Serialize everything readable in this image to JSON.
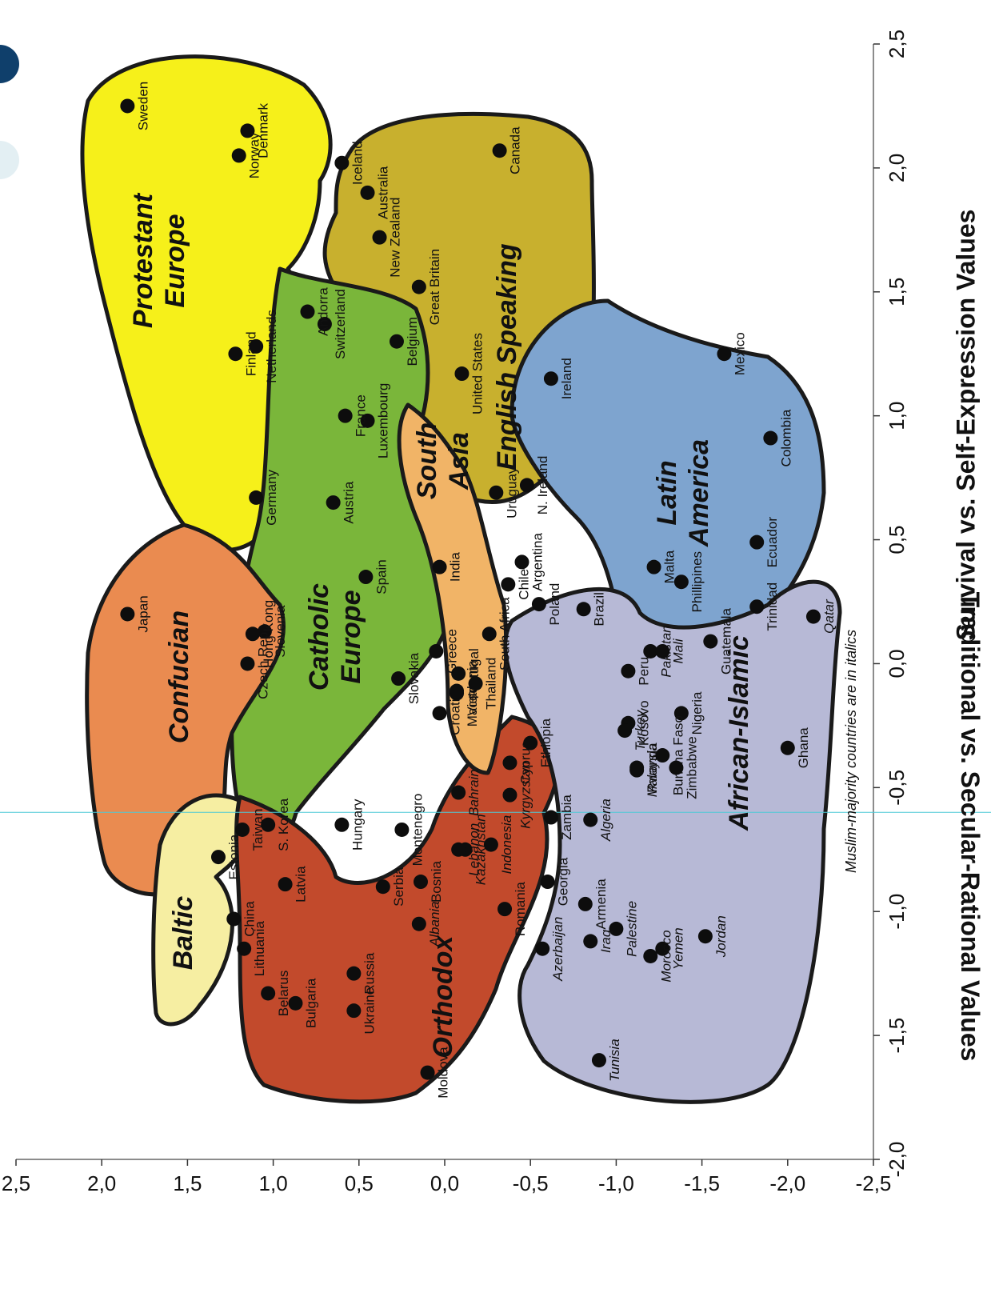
{
  "chart_data": {
    "type": "scatter",
    "xlabel": "Survival vs. Self-Expression Values",
    "ylabel": "Traditional vs. Secular-Rational Values",
    "xlim": [
      -2.0,
      2.5
    ],
    "ylim": [
      -2.5,
      2.5
    ],
    "x_ticks": [
      "-2,0",
      "-1,5",
      "-1,0",
      "-0,5",
      "0,0",
      "0,5",
      "1,0",
      "1,5",
      "2,0",
      "2,5"
    ],
    "y_ticks": [
      "-2,5",
      "-2,0",
      "-1,5",
      "-1,0",
      "-0,5",
      "0,0",
      "0,5",
      "1,0",
      "1,5",
      "2,0",
      "2,5"
    ],
    "note": "Muslim-majority countries are in italics",
    "regions": [
      {
        "name": "Protestant Europe",
        "label_lines": [
          "Protestant",
          "Europe"
        ],
        "color": "#f6f01a"
      },
      {
        "name": "English Speaking",
        "label_lines": [
          "English Speaking"
        ],
        "color": "#c8b02e"
      },
      {
        "name": "Catholic Europe",
        "label_lines": [
          "Catholic",
          "Europe"
        ],
        "color": "#7ab63a"
      },
      {
        "name": "Confucian",
        "label_lines": [
          "Confucian"
        ],
        "color": "#ea8b50"
      },
      {
        "name": "Baltic",
        "label_lines": [
          "Baltic"
        ],
        "color": "#f6eea2"
      },
      {
        "name": "Orthodox",
        "label_lines": [
          "Orthodox"
        ],
        "color": "#c24a2c"
      },
      {
        "name": "South Asia",
        "label_lines": [
          "South",
          "Asia"
        ],
        "color": "#f1b467"
      },
      {
        "name": "Latin America",
        "label_lines": [
          "Latin",
          "America"
        ],
        "color": "#7ea4cf"
      },
      {
        "name": "African-Islamic",
        "label_lines": [
          "African-Islamic"
        ],
        "color": "#b7b9d6"
      }
    ],
    "points": [
      {
        "label": "Sweden",
        "x": 2.25,
        "y": 1.85,
        "muslim": false
      },
      {
        "label": "Denmark",
        "x": 2.15,
        "y": 1.15,
        "muslim": false
      },
      {
        "label": "Norway",
        "x": 2.05,
        "y": 1.2,
        "muslim": false
      },
      {
        "label": "Finland",
        "x": 1.25,
        "y": 1.22,
        "muslim": false
      },
      {
        "label": "Netherlands",
        "x": 1.28,
        "y": 1.1,
        "muslim": false
      },
      {
        "label": "Iceland",
        "x": 2.02,
        "y": 0.6,
        "muslim": false
      },
      {
        "label": "Switzerland",
        "x": 1.37,
        "y": 0.7,
        "muslim": false
      },
      {
        "label": "Germany",
        "x": 0.67,
        "y": 1.1,
        "muslim": false
      },
      {
        "label": "Australia",
        "x": 1.9,
        "y": 0.45,
        "muslim": false
      },
      {
        "label": "New Zealand",
        "x": 1.72,
        "y": 0.38,
        "muslim": false
      },
      {
        "label": "Great Britain",
        "x": 1.52,
        "y": 0.15,
        "muslim": false
      },
      {
        "label": "Canada",
        "x": 2.07,
        "y": -0.32,
        "muslim": false
      },
      {
        "label": "United States",
        "x": 1.17,
        "y": -0.1,
        "muslim": false
      },
      {
        "label": "Ireland",
        "x": 1.15,
        "y": -0.62,
        "muslim": false
      },
      {
        "label": "N. Ireland",
        "x": 0.72,
        "y": -0.48,
        "muslim": false
      },
      {
        "label": "Andorra",
        "x": 1.42,
        "y": 0.8,
        "muslim": false
      },
      {
        "label": "Luxembourg",
        "x": 0.98,
        "y": 0.45,
        "muslim": false
      },
      {
        "label": "Belgium",
        "x": 1.3,
        "y": 0.28,
        "muslim": false
      },
      {
        "label": "France",
        "x": 1.0,
        "y": 0.58,
        "muslim": false
      },
      {
        "label": "Austria",
        "x": 0.65,
        "y": 0.65,
        "muslim": false
      },
      {
        "label": "Spain",
        "x": 0.35,
        "y": 0.46,
        "muslim": false
      },
      {
        "label": "Slovenia",
        "x": 0.13,
        "y": 1.05,
        "muslim": false
      },
      {
        "label": "Hong Kong",
        "x": 0.12,
        "y": 1.12,
        "muslim": false
      },
      {
        "label": "Czech Rep.",
        "x": 0.0,
        "y": 1.15,
        "muslim": false
      },
      {
        "label": "Slovakia",
        "x": -0.06,
        "y": 0.27,
        "muslim": false
      },
      {
        "label": "Greece",
        "x": 0.05,
        "y": 0.05,
        "muslim": false
      },
      {
        "label": "Portugal",
        "x": -0.04,
        "y": -0.08,
        "muslim": false
      },
      {
        "label": "Croatia",
        "x": -0.2,
        "y": 0.03,
        "muslim": false
      },
      {
        "label": "Hungary",
        "x": -0.65,
        "y": 0.6,
        "muslim": false
      },
      {
        "label": "Japan",
        "x": 0.2,
        "y": 1.85,
        "muslim": false
      },
      {
        "label": "Taiwan",
        "x": -0.67,
        "y": 1.18,
        "muslim": false
      },
      {
        "label": "S. Korea",
        "x": -0.65,
        "y": 1.03,
        "muslim": false
      },
      {
        "label": "China",
        "x": -1.03,
        "y": 1.23,
        "muslim": false
      },
      {
        "label": "Estonia",
        "x": -0.78,
        "y": 1.32,
        "muslim": false
      },
      {
        "label": "Latvia",
        "x": -0.89,
        "y": 0.93,
        "muslim": false
      },
      {
        "label": "Lithuania",
        "x": -1.15,
        "y": 1.17,
        "muslim": false
      },
      {
        "label": "Belarus",
        "x": -1.33,
        "y": 1.03,
        "muslim": false
      },
      {
        "label": "Bulgaria",
        "x": -1.37,
        "y": 0.87,
        "muslim": false
      },
      {
        "label": "Ukraine",
        "x": -1.4,
        "y": 0.53,
        "muslim": false
      },
      {
        "label": "Russia",
        "x": -1.25,
        "y": 0.53,
        "muslim": false
      },
      {
        "label": "Moldova",
        "x": -1.65,
        "y": 0.1,
        "muslim": false
      },
      {
        "label": "Serbia",
        "x": -0.9,
        "y": 0.36,
        "muslim": false
      },
      {
        "label": "Montenegro",
        "x": -0.67,
        "y": 0.25,
        "muslim": false
      },
      {
        "label": "Albania",
        "x": -1.05,
        "y": 0.15,
        "muslim": true
      },
      {
        "label": "Bosnia",
        "x": -0.88,
        "y": 0.14,
        "muslim": false
      },
      {
        "label": "Macedonia",
        "x": -0.12,
        "y": -0.07,
        "muslim": false
      },
      {
        "label": "Romania",
        "x": -0.99,
        "y": -0.35,
        "muslim": false
      },
      {
        "label": "Georgia",
        "x": -0.88,
        "y": -0.6,
        "muslim": false
      },
      {
        "label": "Armenia",
        "x": -0.97,
        "y": -0.82,
        "muslim": false
      },
      {
        "label": "Azerbaijan",
        "x": -1.15,
        "y": -0.57,
        "muslim": true
      },
      {
        "label": "Uruguay",
        "x": 0.69,
        "y": -0.3,
        "muslim": false
      },
      {
        "label": "India",
        "x": 0.39,
        "y": 0.03,
        "muslim": false
      },
      {
        "label": "Vietnam",
        "x": -0.11,
        "y": -0.07,
        "muslim": false
      },
      {
        "label": "Thailand",
        "x": -0.08,
        "y": -0.18,
        "muslim": false
      },
      {
        "label": "Cyprus",
        "x": -0.4,
        "y": -0.38,
        "muslim": false
      },
      {
        "label": "Chile",
        "x": 0.32,
        "y": -0.37,
        "muslim": false
      },
      {
        "label": "Argentina",
        "x": 0.41,
        "y": -0.45,
        "muslim": false
      },
      {
        "label": "Poland",
        "x": 0.24,
        "y": -0.55,
        "muslim": false
      },
      {
        "label": "Brazil",
        "x": 0.22,
        "y": -0.81,
        "muslim": false
      },
      {
        "label": "South Africa",
        "x": 0.12,
        "y": -0.26,
        "muslim": false
      },
      {
        "label": "Malta",
        "x": 0.39,
        "y": -1.22,
        "muslim": false
      },
      {
        "label": "Phillipines",
        "x": 0.33,
        "y": -1.38,
        "muslim": false
      },
      {
        "label": "Mexico",
        "x": 1.25,
        "y": -1.63,
        "muslim": false
      },
      {
        "label": "Colombia",
        "x": 0.91,
        "y": -1.9,
        "muslim": false
      },
      {
        "label": "Ecuador",
        "x": 0.49,
        "y": -1.82,
        "muslim": false
      },
      {
        "label": "Guatemala",
        "x": 0.09,
        "y": -1.55,
        "muslim": false
      },
      {
        "label": "Trinidad",
        "x": 0.23,
        "y": -1.82,
        "muslim": false
      },
      {
        "label": "Peru",
        "x": -0.03,
        "y": -1.07,
        "muslim": false
      },
      {
        "label": "Qatar",
        "x": 0.19,
        "y": -2.15,
        "muslim": true
      },
      {
        "label": "Pakistan",
        "x": 0.05,
        "y": -1.2,
        "muslim": true
      },
      {
        "label": "Mali",
        "x": 0.05,
        "y": -1.27,
        "muslim": true
      },
      {
        "label": "Kosovo",
        "x": -0.24,
        "y": -1.07,
        "muslim": false
      },
      {
        "label": "Turkey",
        "x": -0.27,
        "y": -1.05,
        "muslim": true
      },
      {
        "label": "Malaysia",
        "x": -0.43,
        "y": -1.12,
        "muslim": true
      },
      {
        "label": "Nigeria",
        "x": -0.2,
        "y": -1.38,
        "muslim": false
      },
      {
        "label": "Burkina Faso",
        "x": -0.37,
        "y": -1.27,
        "muslim": false
      },
      {
        "label": "Zimbabwe",
        "x": -0.42,
        "y": -1.35,
        "muslim": false
      },
      {
        "label": "Ghana",
        "x": -0.34,
        "y": -2.0,
        "muslim": false
      },
      {
        "label": "Ethiopia",
        "x": -0.32,
        "y": -0.5,
        "muslim": false
      },
      {
        "label": "Zambia",
        "x": -0.62,
        "y": -0.62,
        "muslim": false
      },
      {
        "label": "Algeria",
        "x": -0.63,
        "y": -0.85,
        "muslim": true
      },
      {
        "label": "Rwanda",
        "x": -0.42,
        "y": -1.12,
        "muslim": false
      },
      {
        "label": "Bahrain",
        "x": -0.52,
        "y": -0.08,
        "muslim": true
      },
      {
        "label": "Kazakhstan",
        "x": -0.75,
        "y": -0.12,
        "muslim": true
      },
      {
        "label": "Indonesia",
        "x": -0.73,
        "y": -0.27,
        "muslim": true
      },
      {
        "label": "Kyrgyzstan",
        "x": -0.53,
        "y": -0.38,
        "muslim": true
      },
      {
        "label": "Lebanon",
        "x": -0.75,
        "y": -0.08,
        "muslim": true
      },
      {
        "label": "Palestine",
        "x": -1.07,
        "y": -1.0,
        "muslim": true
      },
      {
        "label": "Iraq",
        "x": -1.12,
        "y": -0.85,
        "muslim": true
      },
      {
        "label": "Yemen",
        "x": -1.15,
        "y": -1.27,
        "muslim": true
      },
      {
        "label": "Morocco",
        "x": -1.18,
        "y": -1.2,
        "muslim": true
      },
      {
        "label": "Jordan",
        "x": -1.1,
        "y": -1.52,
        "muslim": true
      },
      {
        "label": "Tunisia",
        "x": -1.6,
        "y": -0.9,
        "muslim": true
      }
    ]
  }
}
